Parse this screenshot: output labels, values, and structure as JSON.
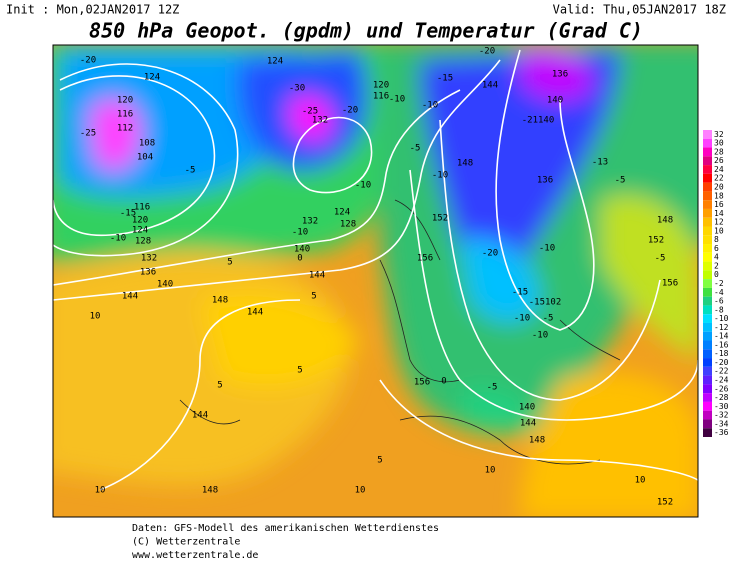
{
  "header": {
    "init": "Init : Mon,02JAN2017 12Z",
    "valid": "Valid: Thu,05JAN2017 18Z",
    "title": "850 hPa Geopot. (gpdm) und Temperatur (Grad C)"
  },
  "legend": {
    "values": [
      32,
      30,
      28,
      26,
      24,
      22,
      20,
      18,
      16,
      14,
      12,
      10,
      8,
      6,
      4,
      2,
      0,
      -2,
      -4,
      -6,
      -8,
      -10,
      -12,
      -14,
      -16,
      -18,
      -20,
      -22,
      -24,
      -26,
      -28,
      -30,
      -32,
      -34,
      -36
    ],
    "colors": [
      "#ff80ff",
      "#ff40ff",
      "#ff00c0",
      "#e00080",
      "#ff0040",
      "#ff0000",
      "#ff4000",
      "#ff6000",
      "#ff8000",
      "#ffa000",
      "#ffc000",
      "#ffd700",
      "#ffe000",
      "#fff000",
      "#ffff00",
      "#e0ff00",
      "#c0ff00",
      "#80ff40",
      "#40e040",
      "#20d080",
      "#00e0c0",
      "#00e0ff",
      "#00c0ff",
      "#00a0ff",
      "#0080ff",
      "#0060ff",
      "#0040ff",
      "#4040ff",
      "#6020ff",
      "#8000ff",
      "#c000ff",
      "#ff00ff",
      "#c000c0",
      "#800080",
      "#400040"
    ]
  },
  "map": {
    "labels": [
      "-20",
      "124",
      "120",
      "116",
      "112",
      "-25",
      "108",
      "104",
      "-5",
      "-15",
      "116",
      "120",
      "124",
      "128",
      "132",
      "136",
      "140",
      "144",
      "148",
      "144",
      "10",
      "5",
      "144",
      "148",
      "10",
      "124",
      "-30",
      "-25",
      "132",
      "-20",
      "120",
      "116",
      "-10",
      "-15",
      "144",
      "-20",
      "136",
      "140",
      "-21140",
      "148",
      "136",
      "152",
      "-10",
      "-20",
      "156",
      "-15",
      "-15102",
      "-10",
      "-5",
      "-10",
      "156",
      "0",
      "-5",
      "140",
      "144",
      "148",
      "152",
      "10",
      "-13",
      "-5",
      "148",
      "152",
      "-5",
      "156",
      "-10",
      "-10",
      "132",
      "128",
      "124",
      "0",
      "144",
      "5",
      "140",
      "5",
      "-10",
      "5",
      "10",
      "5",
      "10",
      "-10",
      "-5",
      "-10"
    ]
  },
  "footer": {
    "lines": [
      "Daten: GFS-Modell des amerikanischen Wetterdienstes",
      "(C) Wetterzentrale",
      "www.wetterzentrale.de"
    ]
  }
}
